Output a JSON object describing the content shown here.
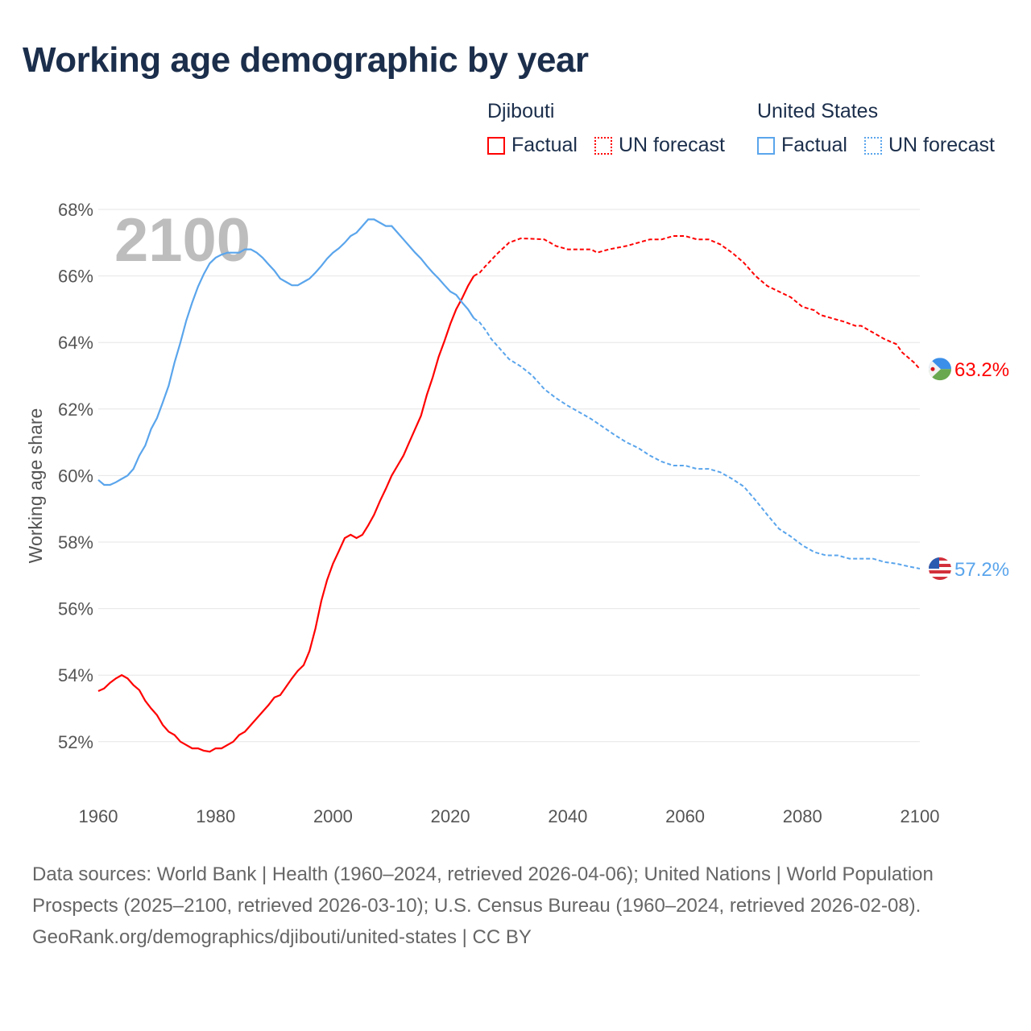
{
  "title": "Working age demographic by year",
  "legend": {
    "groups": [
      {
        "name": "Djibouti",
        "color": "#ff0000",
        "factual": "Factual",
        "forecast": "UN forecast"
      },
      {
        "name": "United States",
        "color": "#5aa5ec",
        "factual": "Factual",
        "forecast": "UN forecast"
      }
    ]
  },
  "chart_data": {
    "type": "line",
    "title": "Working age demographic by year",
    "xlabel": "",
    "ylabel": "Working age share",
    "year_label": "2100",
    "xlim": [
      1960,
      2100
    ],
    "ylim": [
      50.6,
      68.2
    ],
    "xticks": [
      1960,
      1980,
      2000,
      2020,
      2040,
      2060,
      2080,
      2100
    ],
    "yticks": [
      52,
      54,
      56,
      58,
      60,
      62,
      64,
      66,
      68
    ],
    "ytick_suffix": "%",
    "grid": true,
    "forecast_start": 2024,
    "series": [
      {
        "name": "Djibouti",
        "color": "#ff0000",
        "end_label": "63.2%",
        "flag": "djibouti-flag",
        "points": [
          [
            1960,
            53.52
          ],
          [
            1961,
            53.6
          ],
          [
            1962,
            53.77
          ],
          [
            1963,
            53.9
          ],
          [
            1964,
            54.0
          ],
          [
            1965,
            53.9
          ],
          [
            1966,
            53.7
          ],
          [
            1967,
            53.55
          ],
          [
            1968,
            53.23
          ],
          [
            1969,
            53.0
          ],
          [
            1970,
            52.8
          ],
          [
            1971,
            52.5
          ],
          [
            1972,
            52.3
          ],
          [
            1973,
            52.2
          ],
          [
            1974,
            52.0
          ],
          [
            1975,
            51.9
          ],
          [
            1976,
            51.8
          ],
          [
            1977,
            51.8
          ],
          [
            1978,
            51.73
          ],
          [
            1979,
            51.7
          ],
          [
            1980,
            51.8
          ],
          [
            1981,
            51.8
          ],
          [
            1982,
            51.9
          ],
          [
            1983,
            52.0
          ],
          [
            1984,
            52.2
          ],
          [
            1985,
            52.3
          ],
          [
            1986,
            52.5
          ],
          [
            1987,
            52.7
          ],
          [
            1988,
            52.9
          ],
          [
            1989,
            53.1
          ],
          [
            1990,
            53.33
          ],
          [
            1991,
            53.4
          ],
          [
            1992,
            53.65
          ],
          [
            1993,
            53.9
          ],
          [
            1994,
            54.13
          ],
          [
            1995,
            54.3
          ],
          [
            1996,
            54.73
          ],
          [
            1997,
            55.4
          ],
          [
            1998,
            56.23
          ],
          [
            1999,
            56.86
          ],
          [
            2000,
            57.35
          ],
          [
            2001,
            57.73
          ],
          [
            2002,
            58.12
          ],
          [
            2003,
            58.22
          ],
          [
            2004,
            58.12
          ],
          [
            2005,
            58.22
          ],
          [
            2006,
            58.5
          ],
          [
            2007,
            58.82
          ],
          [
            2008,
            59.23
          ],
          [
            2009,
            59.6
          ],
          [
            2010,
            60.0
          ],
          [
            2011,
            60.3
          ],
          [
            2012,
            60.6
          ],
          [
            2013,
            61.0
          ],
          [
            2014,
            61.4
          ],
          [
            2015,
            61.8
          ],
          [
            2016,
            62.43
          ],
          [
            2017,
            62.96
          ],
          [
            2018,
            63.57
          ],
          [
            2019,
            64.05
          ],
          [
            2020,
            64.56
          ],
          [
            2021,
            65.0
          ],
          [
            2022,
            65.33
          ],
          [
            2023,
            65.7
          ],
          [
            2024,
            66.0
          ],
          [
            2025,
            66.1
          ],
          [
            2026,
            66.3
          ],
          [
            2028,
            66.67
          ],
          [
            2030,
            67.0
          ],
          [
            2032,
            67.13
          ],
          [
            2036,
            67.1
          ],
          [
            2038,
            66.9
          ],
          [
            2040,
            66.8
          ],
          [
            2044,
            66.8
          ],
          [
            2045,
            66.7
          ],
          [
            2047,
            66.8
          ],
          [
            2050,
            66.9
          ],
          [
            2052,
            67.0
          ],
          [
            2054,
            67.1
          ],
          [
            2056,
            67.1
          ],
          [
            2058,
            67.2
          ],
          [
            2060,
            67.2
          ],
          [
            2062,
            67.1
          ],
          [
            2064,
            67.1
          ],
          [
            2066,
            66.95
          ],
          [
            2068,
            66.7
          ],
          [
            2070,
            66.4
          ],
          [
            2072,
            66.0
          ],
          [
            2074,
            65.7
          ],
          [
            2076,
            65.53
          ],
          [
            2078,
            65.36
          ],
          [
            2080,
            65.07
          ],
          [
            2082,
            64.97
          ],
          [
            2083,
            64.83
          ],
          [
            2085,
            64.73
          ],
          [
            2087,
            64.63
          ],
          [
            2089,
            64.5
          ],
          [
            2090,
            64.5
          ],
          [
            2092,
            64.3
          ],
          [
            2094,
            64.1
          ],
          [
            2096,
            63.95
          ],
          [
            2097,
            63.7
          ],
          [
            2099,
            63.4
          ],
          [
            2100,
            63.2
          ]
        ]
      },
      {
        "name": "United States",
        "color": "#5aa5ec",
        "end_label": "57.2%",
        "flag": "united-states-flag",
        "points": [
          [
            1960,
            59.87
          ],
          [
            1961,
            59.72
          ],
          [
            1962,
            59.72
          ],
          [
            1963,
            59.8
          ],
          [
            1964,
            59.9
          ],
          [
            1965,
            60.0
          ],
          [
            1966,
            60.2
          ],
          [
            1967,
            60.6
          ],
          [
            1968,
            60.9
          ],
          [
            1969,
            61.4
          ],
          [
            1970,
            61.73
          ],
          [
            1971,
            62.2
          ],
          [
            1972,
            62.7
          ],
          [
            1973,
            63.4
          ],
          [
            1974,
            64.0
          ],
          [
            1975,
            64.66
          ],
          [
            1976,
            65.2
          ],
          [
            1977,
            65.68
          ],
          [
            1978,
            66.06
          ],
          [
            1979,
            66.38
          ],
          [
            1980,
            66.55
          ],
          [
            1981,
            66.64
          ],
          [
            1982,
            66.7
          ],
          [
            1983,
            66.7
          ],
          [
            1984,
            66.7
          ],
          [
            1985,
            66.8
          ],
          [
            1986,
            66.8
          ],
          [
            1987,
            66.7
          ],
          [
            1988,
            66.55
          ],
          [
            1989,
            66.35
          ],
          [
            1990,
            66.16
          ],
          [
            1991,
            65.92
          ],
          [
            1992,
            65.82
          ],
          [
            1993,
            65.72
          ],
          [
            1994,
            65.72
          ],
          [
            1995,
            65.82
          ],
          [
            1996,
            65.92
          ],
          [
            1997,
            66.1
          ],
          [
            1998,
            66.3
          ],
          [
            1999,
            66.52
          ],
          [
            2000,
            66.7
          ],
          [
            2001,
            66.83
          ],
          [
            2002,
            67.0
          ],
          [
            2003,
            67.2
          ],
          [
            2004,
            67.3
          ],
          [
            2005,
            67.5
          ],
          [
            2006,
            67.7
          ],
          [
            2007,
            67.7
          ],
          [
            2008,
            67.6
          ],
          [
            2009,
            67.5
          ],
          [
            2010,
            67.5
          ],
          [
            2011,
            67.3
          ],
          [
            2012,
            67.1
          ],
          [
            2013,
            66.9
          ],
          [
            2014,
            66.7
          ],
          [
            2015,
            66.52
          ],
          [
            2016,
            66.3
          ],
          [
            2017,
            66.1
          ],
          [
            2018,
            65.92
          ],
          [
            2019,
            65.72
          ],
          [
            2020,
            65.53
          ],
          [
            2021,
            65.43
          ],
          [
            2022,
            65.2
          ],
          [
            2023,
            65.0
          ],
          [
            2024,
            64.73
          ],
          [
            2025,
            64.6
          ],
          [
            2026,
            64.37
          ],
          [
            2027,
            64.1
          ],
          [
            2028,
            63.9
          ],
          [
            2030,
            63.5
          ],
          [
            2032,
            63.28
          ],
          [
            2034,
            63.0
          ],
          [
            2036,
            62.6
          ],
          [
            2038,
            62.33
          ],
          [
            2040,
            62.1
          ],
          [
            2042,
            61.9
          ],
          [
            2044,
            61.7
          ],
          [
            2046,
            61.46
          ],
          [
            2048,
            61.22
          ],
          [
            2050,
            61.0
          ],
          [
            2052,
            60.83
          ],
          [
            2054,
            60.6
          ],
          [
            2056,
            60.42
          ],
          [
            2058,
            60.3
          ],
          [
            2060,
            60.3
          ],
          [
            2062,
            60.2
          ],
          [
            2064,
            60.2
          ],
          [
            2066,
            60.1
          ],
          [
            2068,
            59.9
          ],
          [
            2070,
            59.67
          ],
          [
            2072,
            59.26
          ],
          [
            2074,
            58.82
          ],
          [
            2076,
            58.4
          ],
          [
            2078,
            58.17
          ],
          [
            2080,
            57.9
          ],
          [
            2082,
            57.7
          ],
          [
            2084,
            57.6
          ],
          [
            2086,
            57.6
          ],
          [
            2088,
            57.5
          ],
          [
            2090,
            57.5
          ],
          [
            2092,
            57.5
          ],
          [
            2094,
            57.4
          ],
          [
            2096,
            57.35
          ],
          [
            2098,
            57.27
          ],
          [
            2100,
            57.2
          ]
        ]
      }
    ]
  },
  "footer": {
    "sources": "Data sources: World Bank | Health (1960–2024, retrieved 2026-04-06); United Nations | World Population Prospects (2025–2100, retrieved 2026-03-10); U.S. Census Bureau (1960–2024, retrieved 2026-02-08).",
    "attribution": "GeoRank.org/demographics/djibouti/united-states | CC BY"
  }
}
